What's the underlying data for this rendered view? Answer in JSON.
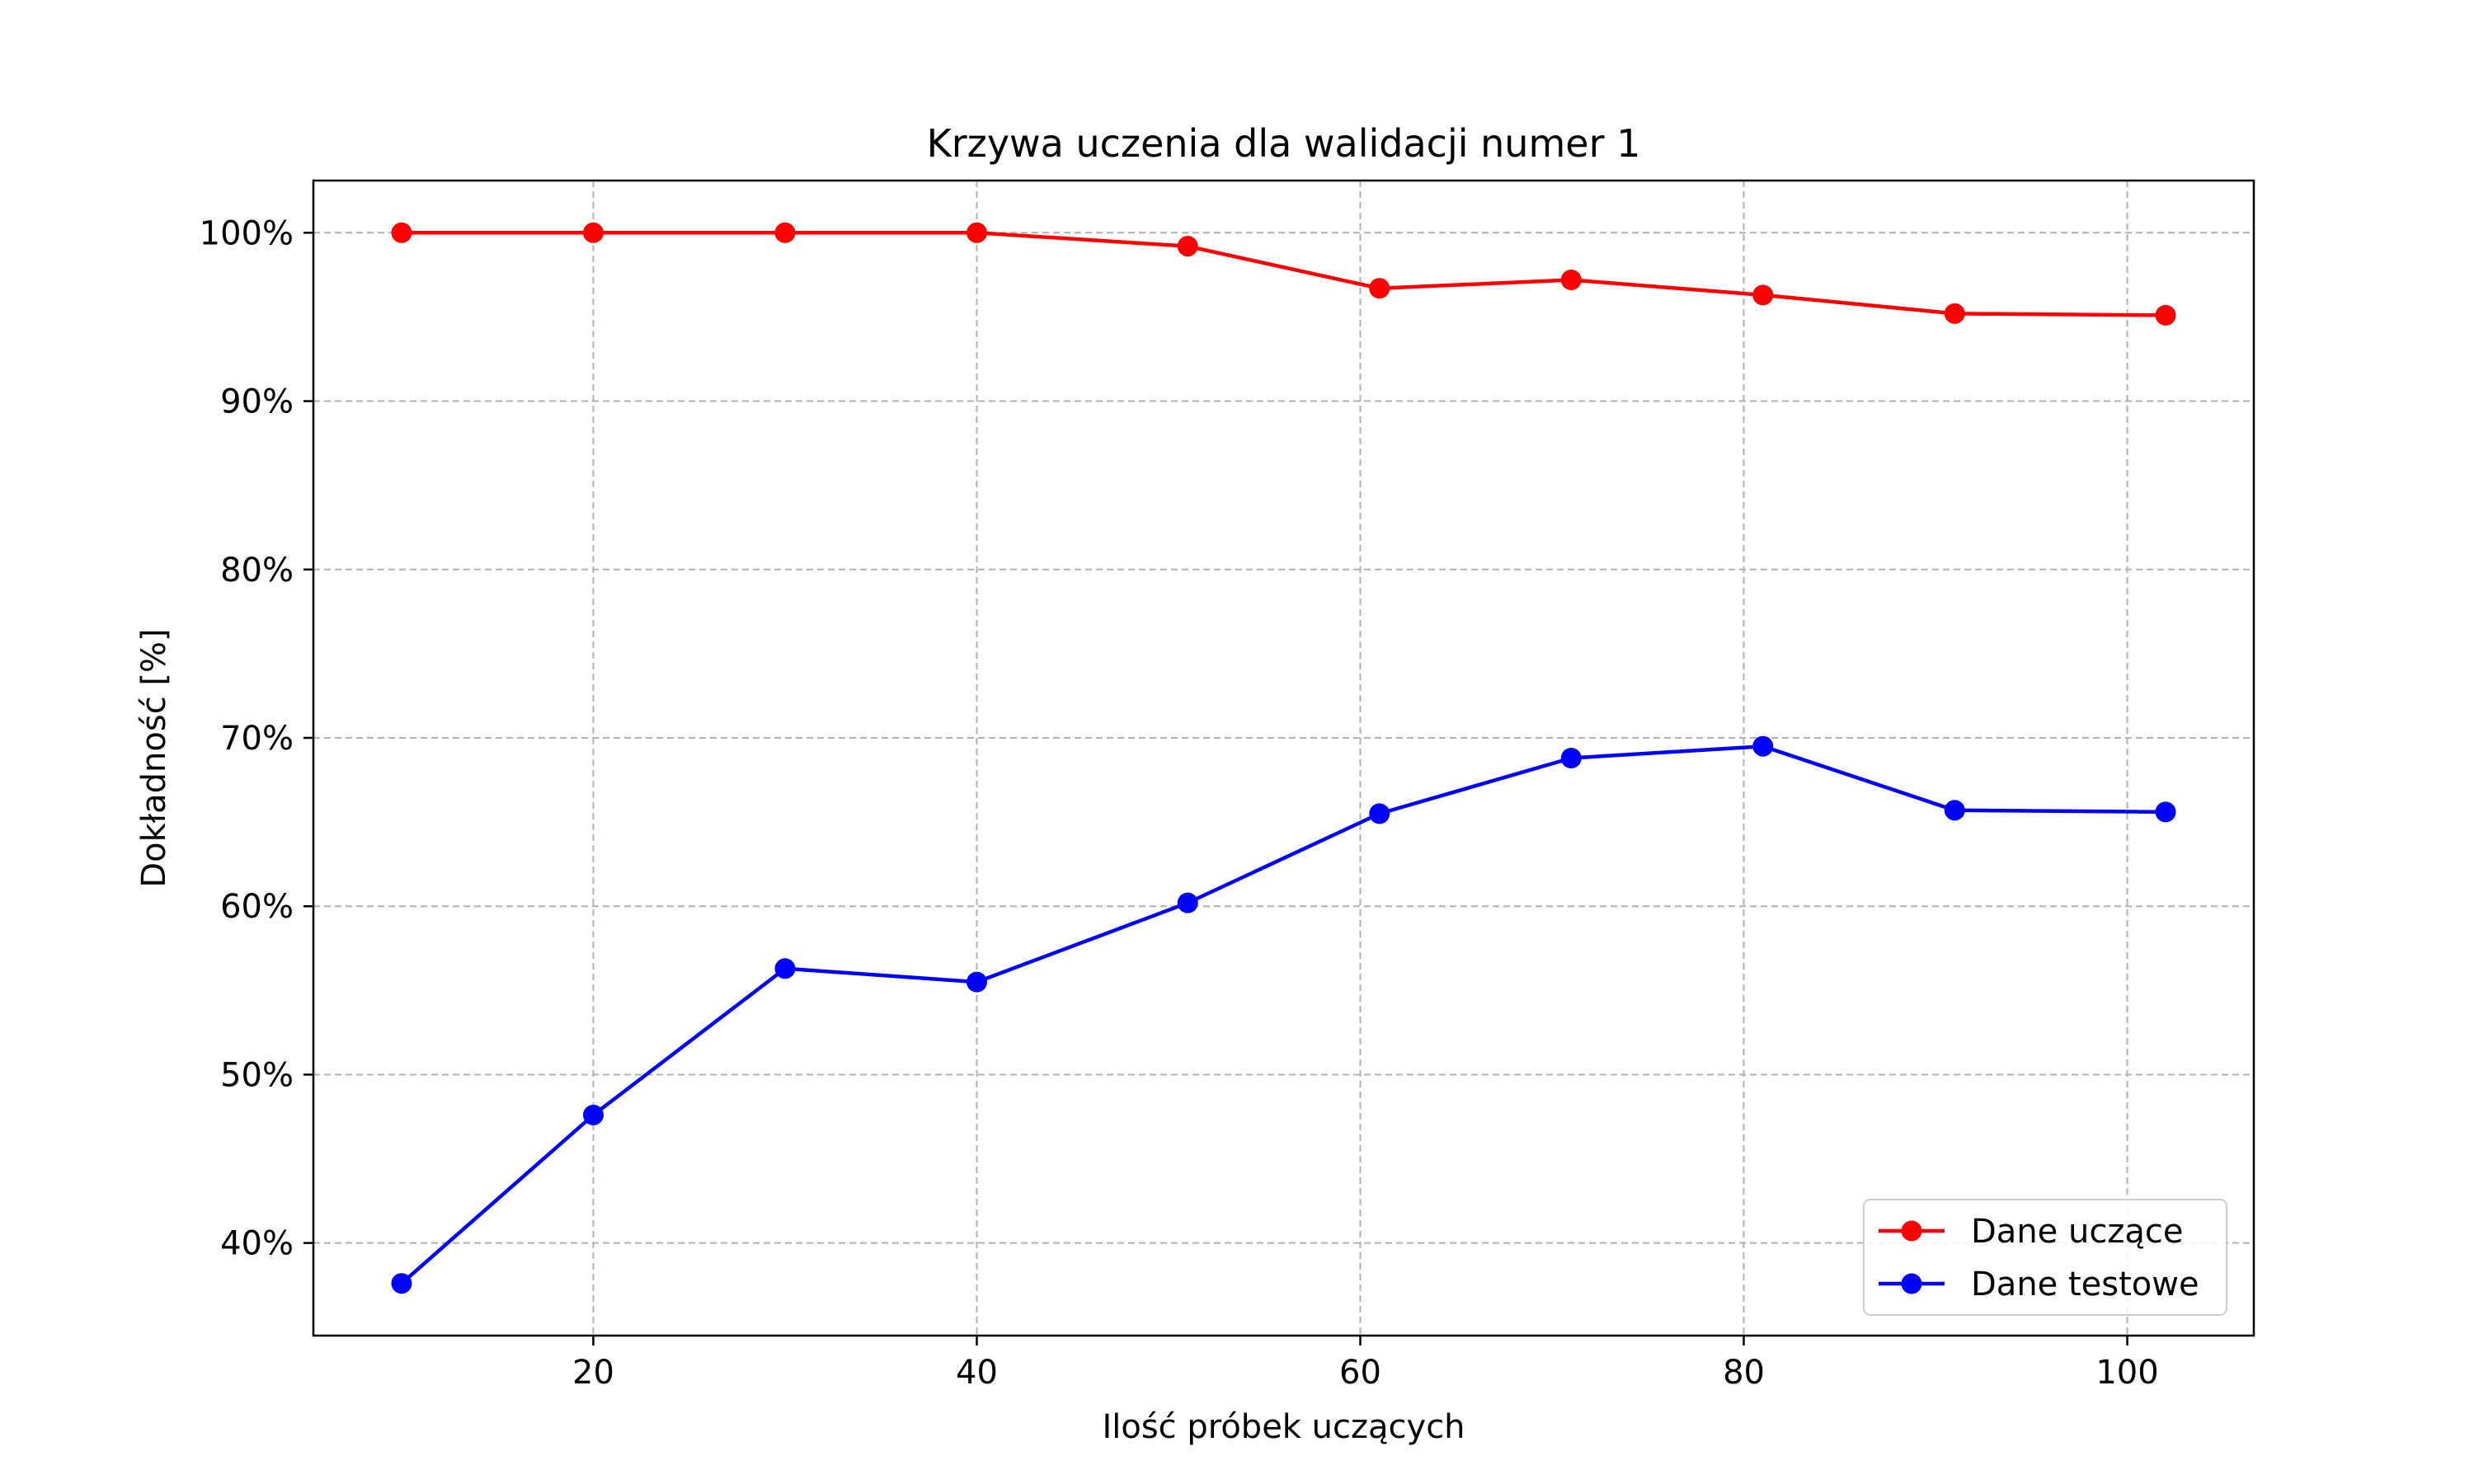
{
  "chart_data": {
    "type": "line",
    "title": "Krzywa uczenia dla walidacji numer 1",
    "xlabel": "Ilość próbek uczących",
    "ylabel": "Dokładność [%]",
    "xlim": [
      5.4,
      106.6
    ],
    "ylim": [
      34.5,
      103.1
    ],
    "xticks": [
      20,
      40,
      60,
      80,
      100
    ],
    "xtick_labels": [
      "20",
      "40",
      "60",
      "80",
      "100"
    ],
    "yticks": [
      40,
      50,
      60,
      70,
      80,
      90,
      100
    ],
    "ytick_labels": [
      "40%",
      "50%",
      "60%",
      "70%",
      "80%",
      "90%",
      "100%"
    ],
    "grid": true,
    "grid_style": "dashed",
    "legend_position": "lower-right",
    "x": [
      10,
      20,
      30,
      40,
      51,
      61,
      71,
      81,
      91,
      102
    ],
    "series": [
      {
        "name": "Dane uczące",
        "color": "#ff0000",
        "marker": "circle",
        "values": [
          100.0,
          100.0,
          100.0,
          100.0,
          99.2,
          96.7,
          97.2,
          96.3,
          95.2,
          95.1
        ]
      },
      {
        "name": "Dane testowe",
        "color": "#0000ff",
        "marker": "circle",
        "values": [
          37.6,
          47.6,
          56.3,
          55.5,
          60.2,
          65.5,
          68.8,
          69.5,
          65.7,
          65.6
        ]
      }
    ]
  }
}
